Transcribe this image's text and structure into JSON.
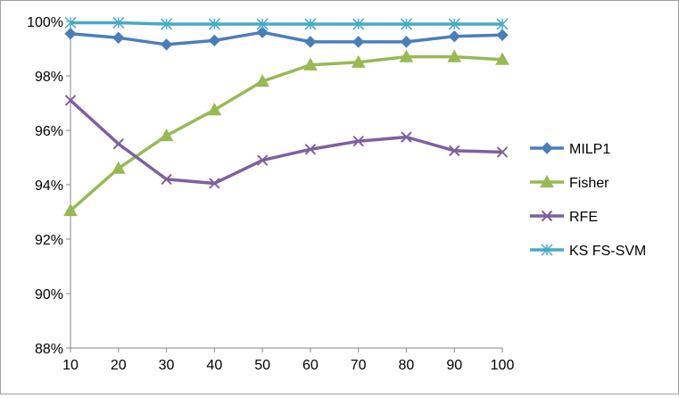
{
  "chart_data": {
    "type": "line",
    "x": [
      10,
      20,
      30,
      40,
      50,
      60,
      70,
      80,
      90,
      100
    ],
    "x_tick_labels": [
      "10",
      "20",
      "30",
      "40",
      "50",
      "60",
      "70",
      "80",
      "90",
      "100"
    ],
    "ylim": [
      88,
      100
    ],
    "y_ticks": [
      88,
      90,
      92,
      94,
      96,
      98,
      100
    ],
    "y_tick_labels": [
      "88%",
      "90%",
      "92%",
      "94%",
      "96%",
      "98%",
      "100%"
    ],
    "grid": false,
    "legend_position": "right",
    "series": [
      {
        "name": "MILP1",
        "color": "#4a7ebb",
        "marker": "diamond",
        "values": [
          99.55,
          99.4,
          99.15,
          99.3,
          99.6,
          99.25,
          99.25,
          99.25,
          99.45,
          99.5
        ]
      },
      {
        "name": "Fisher",
        "color": "#98b954",
        "marker": "triangle",
        "values": [
          93.05,
          94.6,
          95.8,
          96.75,
          97.8,
          98.4,
          98.5,
          98.7,
          98.7,
          98.6
        ]
      },
      {
        "name": "RFE",
        "color": "#7d60a0",
        "marker": "x",
        "values": [
          97.1,
          95.5,
          94.2,
          94.05,
          94.9,
          95.3,
          95.6,
          95.75,
          95.25,
          95.2
        ]
      },
      {
        "name": "KS FS-SVM",
        "color": "#46aac5",
        "marker": "asterisk",
        "values": [
          99.95,
          99.95,
          99.9,
          99.9,
          99.9,
          99.9,
          99.9,
          99.9,
          99.9,
          99.9
        ]
      }
    ]
  }
}
